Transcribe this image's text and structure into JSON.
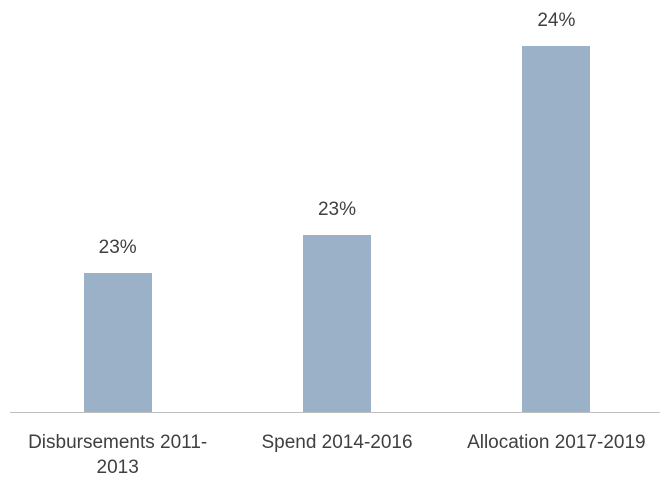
{
  "chart_data": {
    "type": "bar",
    "categories": [
      "Disbursements 2011-2013",
      "Spend 2014-2016",
      "Allocation 2017-2019"
    ],
    "values": [
      22.8,
      23.0,
      24.0
    ],
    "value_labels": [
      "23%",
      "23%",
      "24%"
    ],
    "color": "#9bb1c8",
    "ylim": [
      22.07,
      24.24
    ]
  }
}
